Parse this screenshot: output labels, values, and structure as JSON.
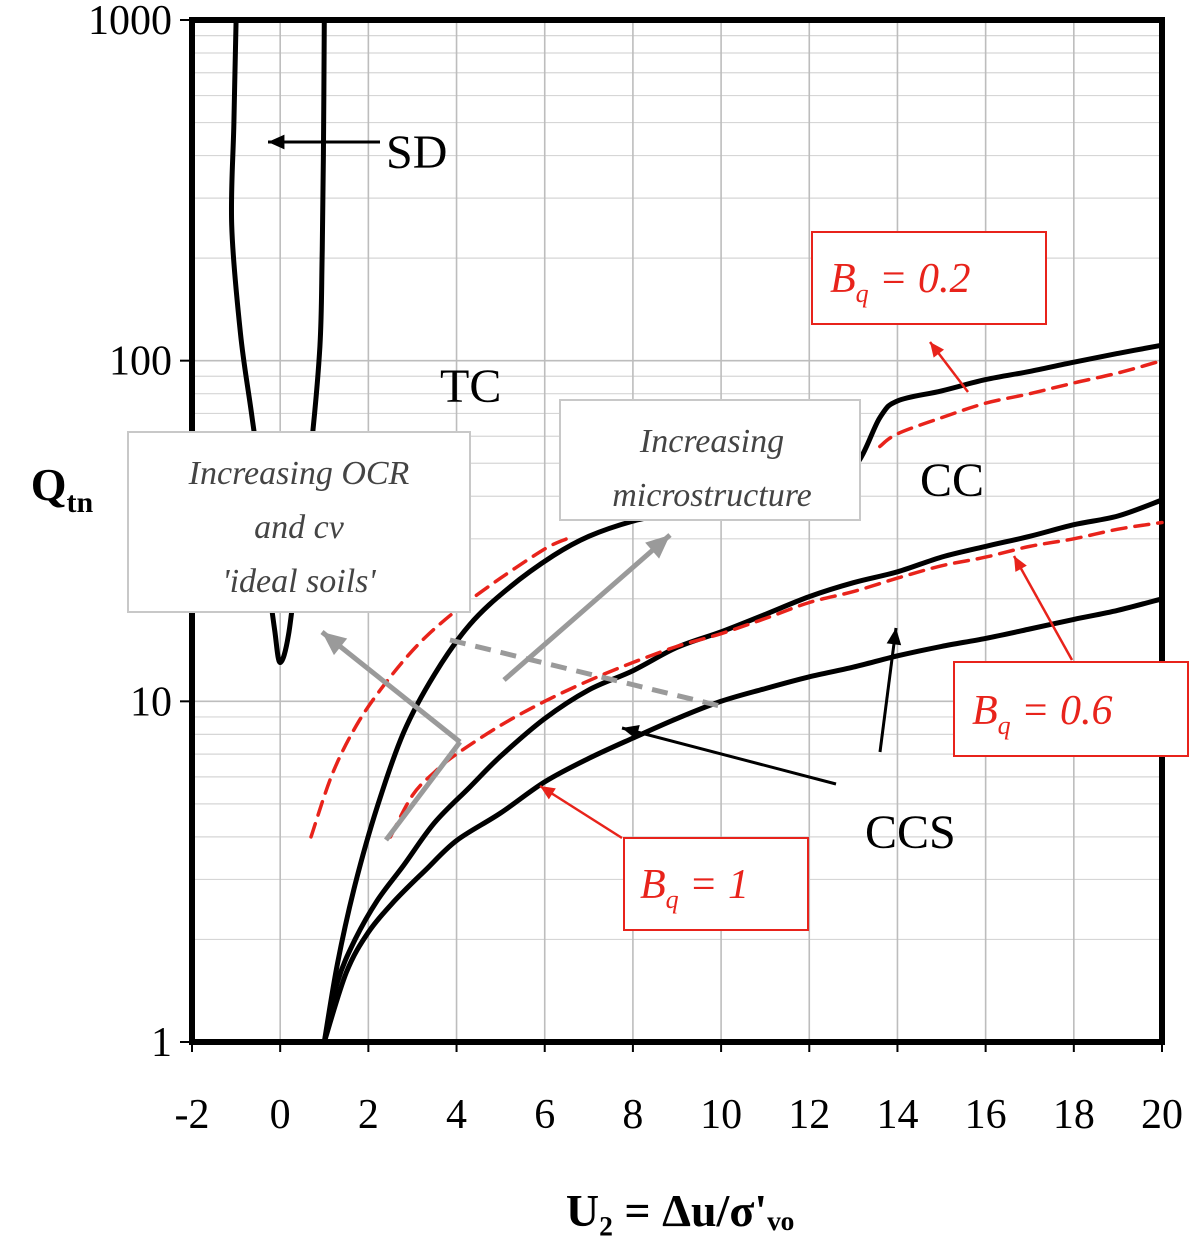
{
  "chart_data": {
    "type": "line",
    "xlabel": "U₂ = Δu/σ'ᵥₒ",
    "ylabel": "Qtn",
    "y_scale": "log",
    "xlim": [
      -2,
      20
    ],
    "ylim": [
      1,
      1000
    ],
    "x_ticks": [
      -2,
      0,
      2,
      4,
      6,
      8,
      10,
      12,
      14,
      16,
      18,
      20
    ],
    "x_tick_labels": [
      "-2",
      "0",
      "2",
      "4",
      "6",
      "8",
      "10",
      "12",
      "14",
      "16",
      "18",
      "20"
    ],
    "y_ticks": [
      1,
      10,
      100,
      1000
    ],
    "y_tick_labels": [
      "1",
      "10",
      "100",
      "1000"
    ],
    "grid": true,
    "colors": {
      "boundary": "#000000",
      "bq": "#e8231b",
      "arrow": "#9a9a9a",
      "axis": "#000000",
      "grid": "#bdbdbd"
    },
    "series": [
      {
        "style": "black-solid",
        "points": [
          [
            -1.0,
            1000
          ],
          [
            -1.05,
            500
          ],
          [
            -1.1,
            250
          ],
          [
            -0.9,
            120
          ],
          [
            -0.65,
            70
          ],
          [
            -0.4,
            40
          ],
          [
            -0.25,
            22
          ],
          [
            -0.12,
            16
          ],
          [
            0,
            13
          ],
          [
            0.2,
            16
          ],
          [
            0.45,
            30
          ],
          [
            0.7,
            55
          ],
          [
            0.9,
            110
          ],
          [
            0.95,
            200
          ],
          [
            0.98,
            400
          ],
          [
            1.0,
            1000
          ]
        ]
      },
      {
        "style": "black-solid",
        "points": [
          [
            1.0,
            1
          ],
          [
            1.3,
            1.7
          ],
          [
            1.7,
            2.9
          ],
          [
            2.2,
            4.9
          ],
          [
            2.8,
            8.1
          ],
          [
            3.5,
            12.0
          ],
          [
            4.3,
            16.8
          ],
          [
            5.2,
            21.6
          ],
          [
            6.2,
            26.8
          ],
          [
            7.0,
            30.5
          ],
          [
            8.0,
            33.8
          ],
          [
            9.0,
            36.0
          ],
          [
            10.0,
            38.2
          ],
          [
            11.0,
            40.3
          ],
          [
            12.0,
            43.0
          ],
          [
            13.0,
            48.5
          ],
          [
            13.6,
            68.0
          ],
          [
            14.0,
            76.2
          ],
          [
            15.0,
            81.5
          ],
          [
            16.0,
            88.0
          ],
          [
            17.0,
            93.0
          ],
          [
            18.0,
            99.0
          ],
          [
            19.0,
            105.0
          ],
          [
            20.0,
            111.0
          ]
        ]
      },
      {
        "style": "black-solid",
        "points": [
          [
            1.0,
            1
          ],
          [
            1.3,
            1.5
          ],
          [
            1.7,
            2.0
          ],
          [
            2.2,
            2.6
          ],
          [
            2.8,
            3.3
          ],
          [
            3.5,
            4.4
          ],
          [
            4.3,
            5.6
          ],
          [
            5.0,
            6.9
          ],
          [
            6.0,
            8.9
          ],
          [
            7.0,
            10.8
          ],
          [
            8.0,
            12.3
          ],
          [
            9.0,
            14.4
          ],
          [
            10.0,
            16.0
          ],
          [
            11.0,
            18.0
          ],
          [
            12.0,
            20.3
          ],
          [
            13.0,
            22.3
          ],
          [
            14.0,
            24.0
          ],
          [
            15.0,
            26.5
          ],
          [
            16.0,
            28.5
          ],
          [
            17.0,
            30.5
          ],
          [
            18.0,
            33.0
          ],
          [
            19.0,
            35.0
          ],
          [
            20.0,
            39.0
          ]
        ]
      },
      {
        "style": "black-solid",
        "points": [
          [
            1.0,
            1
          ],
          [
            1.5,
            1.6
          ],
          [
            2.0,
            2.1
          ],
          [
            2.6,
            2.6
          ],
          [
            3.3,
            3.2
          ],
          [
            4.0,
            3.9
          ],
          [
            5.0,
            4.7
          ],
          [
            6.0,
            5.8
          ],
          [
            7.0,
            6.8
          ],
          [
            8.0,
            7.8
          ],
          [
            9.0,
            8.9
          ],
          [
            10.0,
            10.0
          ],
          [
            11.0,
            10.9
          ],
          [
            12.0,
            11.8
          ],
          [
            13.0,
            12.6
          ],
          [
            14.0,
            13.6
          ],
          [
            15.0,
            14.5
          ],
          [
            16.0,
            15.3
          ],
          [
            17.0,
            16.3
          ],
          [
            18.0,
            17.4
          ],
          [
            19.0,
            18.5
          ],
          [
            20.0,
            20.0
          ]
        ]
      },
      {
        "style": "red-dashed",
        "points": [
          [
            0.7,
            4.0
          ],
          [
            1.2,
            6.2
          ],
          [
            1.8,
            8.8
          ],
          [
            2.5,
            11.8
          ],
          [
            3.2,
            15.0
          ],
          [
            4.0,
            18.5
          ],
          [
            5.0,
            23.0
          ],
          [
            6.0,
            28.0
          ],
          [
            6.5,
            30.0
          ]
        ]
      },
      {
        "style": "red-dashed",
        "points": [
          [
            13.6,
            56.0
          ],
          [
            14.0,
            61.0
          ],
          [
            15.0,
            68.0
          ],
          [
            16.0,
            75.0
          ],
          [
            17.0,
            80.0
          ],
          [
            18.0,
            86.0
          ],
          [
            19.0,
            92.0
          ],
          [
            20.0,
            100.0
          ]
        ]
      },
      {
        "style": "red-dashed",
        "points": [
          [
            2.5,
            4.0
          ],
          [
            3.0,
            5.3
          ],
          [
            3.5,
            6.2
          ],
          [
            4.0,
            7.0
          ],
          [
            5.0,
            8.5
          ],
          [
            6.0,
            10.0
          ],
          [
            7.0,
            11.5
          ],
          [
            8.0,
            13.0
          ],
          [
            9.0,
            14.5
          ],
          [
            10.0,
            15.8
          ],
          [
            11.0,
            17.5
          ],
          [
            12.0,
            19.5
          ],
          [
            13.0,
            21.0
          ],
          [
            14.0,
            23.0
          ],
          [
            15.0,
            25.0
          ],
          [
            16.0,
            26.5
          ],
          [
            17.0,
            28.5
          ],
          [
            18.0,
            30.0
          ],
          [
            19.0,
            32.0
          ],
          [
            20.0,
            33.5
          ]
        ]
      }
    ],
    "annotations": {
      "sd": "SD",
      "tc": "TC",
      "cc": "CC",
      "ccs": "CCS",
      "bq02": {
        "symbol": "B",
        "subscript": "q",
        "rest": " = 0.2"
      },
      "bq06": {
        "symbol": "B",
        "subscript": "q",
        "rest": " = 0.6"
      },
      "bq1": {
        "symbol": "B",
        "subscript": "q",
        "rest": " = 1"
      },
      "ocr": [
        "Increasing OCR",
        "and cv",
        "'ideal soils'"
      ],
      "micro": [
        "Increasing",
        "microstructure"
      ]
    }
  }
}
